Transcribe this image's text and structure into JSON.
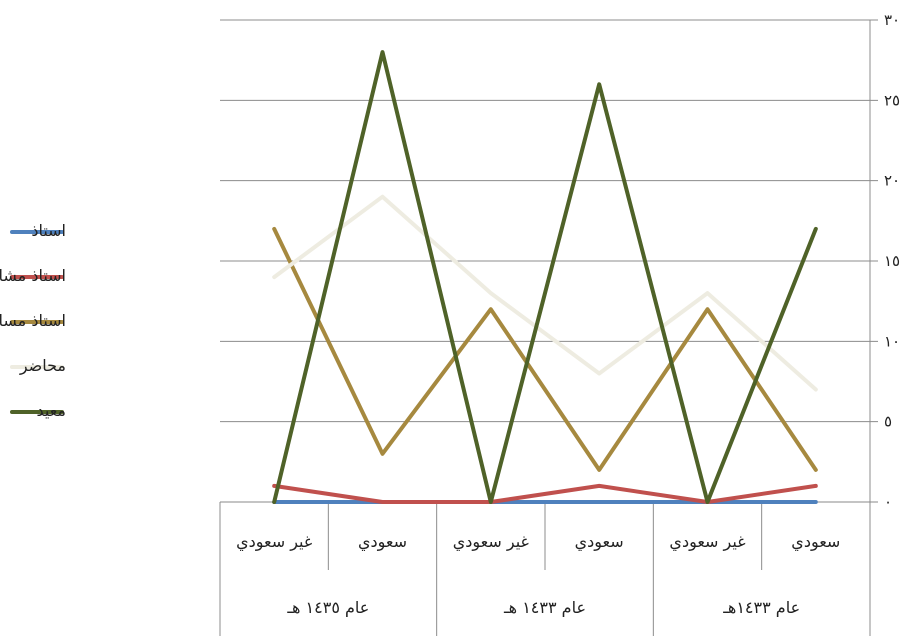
{
  "chart_data": {
    "type": "line",
    "title": "",
    "xlabel": "",
    "ylabel": "",
    "ylim": [
      0,
      30
    ],
    "y_ticks": [
      0,
      5,
      10,
      15,
      20,
      25,
      30
    ],
    "y_tick_labels": [
      "٠",
      "٥",
      "١٠",
      "١٥",
      "٢٠",
      "٢٥",
      "٣٠"
    ],
    "axis_side": "right",
    "grid": true,
    "legend_position": "left",
    "categories": [
      "غير سعودي",
      "سعودي",
      "غير سعودي",
      "سعودي",
      "غير سعودي",
      "سعودي"
    ],
    "groups": [
      {
        "label": "عام ١٤٣٥ هـ",
        "span": 2
      },
      {
        "label": "عام ١٤٣٣ هـ",
        "span": 2
      },
      {
        "label": "عام ١٤٣٣هـ",
        "span": 2
      }
    ],
    "series": [
      {
        "name": "استاذ",
        "color": "#4f81bd",
        "values": [
          0,
          0,
          0,
          0,
          0,
          0
        ]
      },
      {
        "name": "استاذ مشارك",
        "color": "#c0504d",
        "values": [
          1,
          0,
          0,
          1,
          0,
          1
        ]
      },
      {
        "name": "استاذ مساعد",
        "color": "#a6893f",
        "values": [
          17,
          3,
          12,
          2,
          12,
          2
        ]
      },
      {
        "name": "محاضر",
        "color": "#eeece1",
        "values": [
          14,
          19,
          13,
          8,
          13,
          7
        ]
      },
      {
        "name": "معيد",
        "color": "#4f6228",
        "values": [
          0,
          28,
          0,
          26,
          0,
          17
        ]
      }
    ]
  }
}
